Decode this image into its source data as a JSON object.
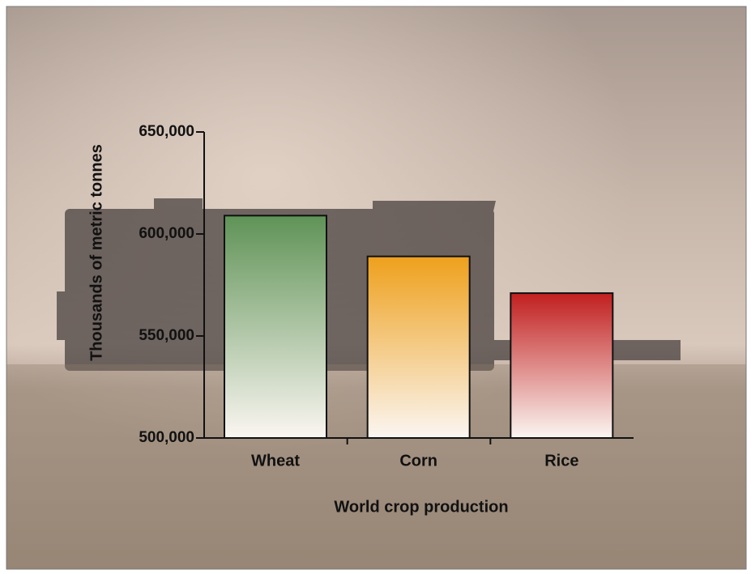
{
  "chart_data": {
    "type": "bar",
    "x_label": "World crop production",
    "y_label": "Thousands of metric tonnes",
    "categories": [
      "Wheat",
      "Corn",
      "Rice"
    ],
    "values": [
      609000,
      589000,
      571000
    ],
    "colors": [
      "#5f9356",
      "#eea01c",
      "#c11f1f"
    ],
    "ylim": [
      500000,
      650000
    ],
    "yticks": [
      {
        "value": 500000,
        "label": "500,000"
      },
      {
        "value": 550000,
        "label": "550,000"
      },
      {
        "value": 600000,
        "label": "600,000"
      },
      {
        "value": 650000,
        "label": "650,000"
      }
    ]
  }
}
